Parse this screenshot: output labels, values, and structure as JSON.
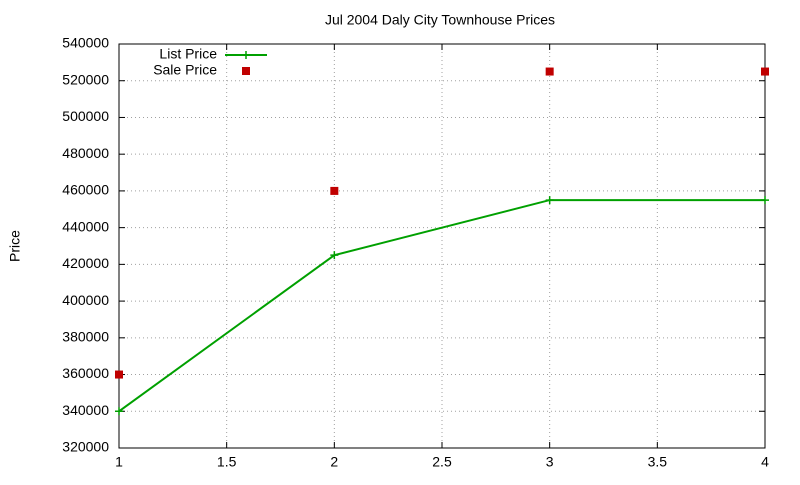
{
  "chart_data": {
    "type": "line",
    "title": "Jul 2004 Daly City Townhouse Prices",
    "y_label": "Price",
    "x": [
      1,
      2,
      3,
      4
    ],
    "series": [
      {
        "name": "List Price",
        "color": "#00a000",
        "style": "linespoints",
        "values": [
          340000,
          425000,
          455000,
          455000
        ]
      },
      {
        "name": "Sale Price",
        "color": "#c00000",
        "style": "points",
        "values": [
          360000,
          460000,
          525000,
          525000
        ]
      }
    ],
    "xlim": [
      1,
      4
    ],
    "xticks": [
      1,
      1.5,
      2,
      2.5,
      3,
      3.5,
      4
    ],
    "ylim": [
      320000,
      540000
    ],
    "yticks": [
      320000,
      340000,
      360000,
      380000,
      400000,
      420000,
      440000,
      460000,
      480000,
      500000,
      520000,
      540000
    ],
    "grid": true,
    "legend": "top-left"
  }
}
